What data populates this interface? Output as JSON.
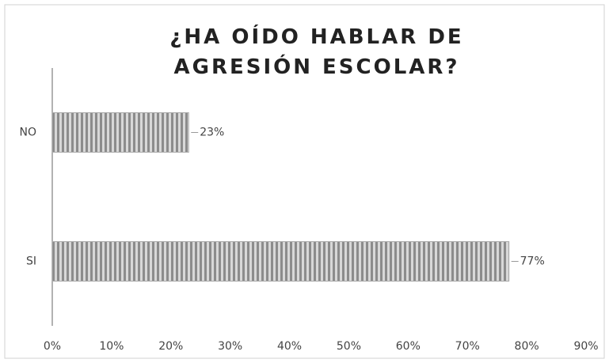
{
  "chart_data": {
    "type": "bar",
    "orientation": "horizontal",
    "title": "¿HA OÍDO HABLAR DE AGRESIÓN ESCOLAR?",
    "categories": [
      "NO",
      "SI"
    ],
    "values": [
      23,
      77
    ],
    "value_labels": [
      "23%",
      "77%"
    ],
    "color": "#9a9a9a",
    "xlim": [
      0,
      90
    ],
    "xticks": [
      {
        "value": 0,
        "label": "0%"
      },
      {
        "value": 10,
        "label": "10%"
      },
      {
        "value": 20,
        "label": "20%"
      },
      {
        "value": 30,
        "label": "30%"
      },
      {
        "value": 40,
        "label": "40%"
      },
      {
        "value": 50,
        "label": "50%"
      },
      {
        "value": 60,
        "label": "60%"
      },
      {
        "value": 70,
        "label": "70%"
      },
      {
        "value": 80,
        "label": "80%"
      },
      {
        "value": 90,
        "label": "90%"
      }
    ],
    "grid": false
  }
}
